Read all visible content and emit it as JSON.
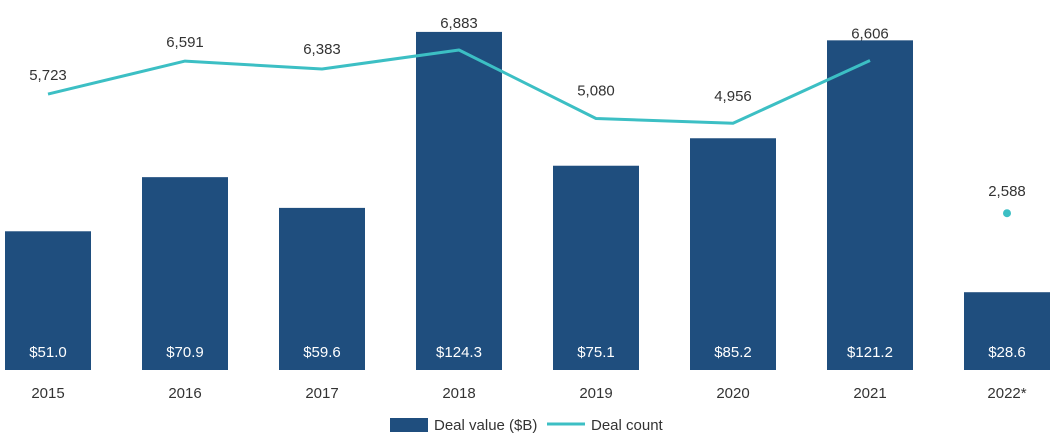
{
  "chart_data": {
    "type": "bar",
    "categories": [
      "2015",
      "2016",
      "2017",
      "2018",
      "2019",
      "2020",
      "2021",
      "2022*"
    ],
    "series": [
      {
        "name": "Deal value ($B)",
        "kind": "bar",
        "color": "#1f4e7e",
        "values": [
          51.0,
          70.9,
          59.6,
          124.3,
          75.1,
          85.2,
          121.2,
          28.6
        ],
        "labels": [
          "$51.0",
          "$70.9",
          "$59.6",
          "$124.3",
          "$75.1",
          "$85.2",
          "$121.2",
          "$28.6"
        ]
      },
      {
        "name": "Deal count",
        "kind": "line",
        "color": "#3cbfc4",
        "values": [
          5723,
          6591,
          6383,
          6883,
          5080,
          4956,
          6606,
          2588
        ],
        "labels": [
          "5,723",
          "6,591",
          "6,383",
          "6,883",
          "5,080",
          "4,956",
          "6,606",
          "2,588"
        ],
        "line_points": 7,
        "last_point_marker": true
      }
    ],
    "title": "",
    "xlabel": "",
    "ylabel": "",
    "legend_position": "bottom-center",
    "grid": false
  }
}
